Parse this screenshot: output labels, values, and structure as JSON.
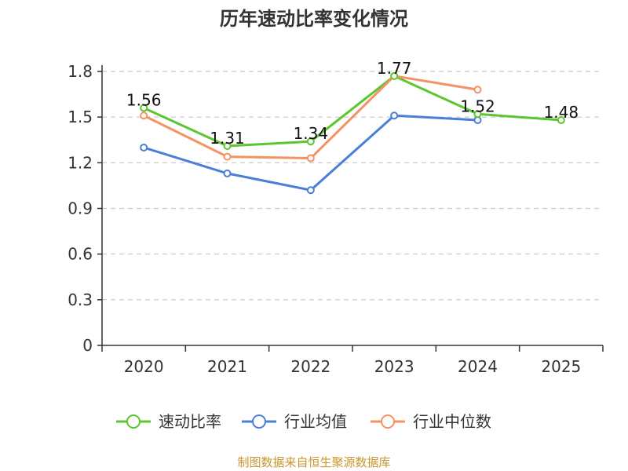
{
  "chart_data": {
    "type": "line",
    "title": "历年速动比率变化情况",
    "categories": [
      "2020",
      "2021",
      "2022",
      "2023",
      "2024",
      "2025"
    ],
    "ylim": [
      0,
      1.8
    ],
    "yticks": [
      "0",
      "0.3",
      "0.6",
      "0.9",
      "1.2",
      "1.5",
      "1.8"
    ],
    "ytick_values": [
      0,
      0.3,
      0.6,
      0.9,
      1.2,
      1.5,
      1.8
    ],
    "grid": true,
    "legend_position": "bottom",
    "series": [
      {
        "name": "速动比率",
        "color": "#5bc62f",
        "values": [
          1.56,
          1.31,
          1.34,
          1.77,
          1.52,
          1.48
        ],
        "labels": [
          "1.56",
          "1.31",
          "1.34",
          "1.77",
          "1.52",
          "1.48"
        ]
      },
      {
        "name": "行业均值",
        "color": "#4a7fd8",
        "values": [
          1.3,
          1.13,
          1.02,
          1.51,
          1.48,
          null
        ]
      },
      {
        "name": "行业中位数",
        "color": "#f59264",
        "values": [
          1.51,
          1.24,
          1.23,
          1.77,
          1.68,
          null
        ]
      }
    ],
    "source": "制图数据来自恒生聚源数据库"
  }
}
